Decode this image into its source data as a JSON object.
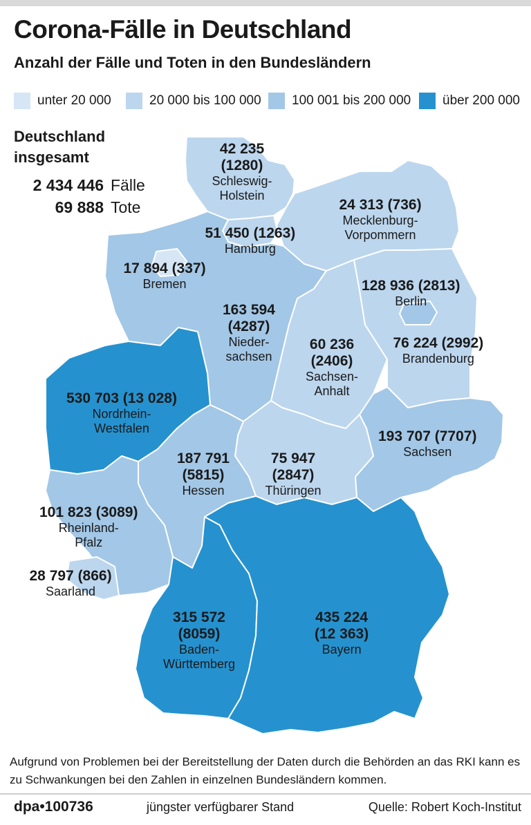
{
  "title": "Corona-Fälle in Deutschland",
  "subtitle": "Anzahl der Fälle und Toten in den Bundesländern",
  "legend": [
    {
      "label": "unter 20 000",
      "color": "#d6e6f5"
    },
    {
      "label": "20 000 bis 100 000",
      "color": "#bcd6ee"
    },
    {
      "label": "100 001 bis 200 000",
      "color": "#a3c7e6"
    },
    {
      "label": "über 200 000",
      "color": "#2592cf"
    }
  ],
  "total": {
    "title_line1": "Deutschland",
    "title_line2": "insgesamt",
    "cases_value": "2 434 446",
    "cases_label": "Fälle",
    "deaths_value": "69 888",
    "deaths_label": "Tote"
  },
  "states": [
    {
      "key": "sh",
      "num": [
        "42 235",
        "(1280)"
      ],
      "name": [
        "Schleswig-",
        "Holstein"
      ],
      "color": "#bcd6ee"
    },
    {
      "key": "mv",
      "num": [
        "24 313 (736)"
      ],
      "name": [
        "Mecklenburg-",
        "Vorpommern"
      ],
      "color": "#bcd6ee"
    },
    {
      "key": "hh",
      "num": [
        "51 450 (1263)"
      ],
      "name": [
        "Hamburg"
      ],
      "color": "#bcd6ee"
    },
    {
      "key": "hb",
      "num": [
        "17 894 (337)"
      ],
      "name": [
        "Bremen"
      ],
      "color": "#d6e6f5"
    },
    {
      "key": "be",
      "num": [
        "128 936 (2813)"
      ],
      "name": [
        "Berlin"
      ],
      "color": "#a3c7e6"
    },
    {
      "key": "ni",
      "num": [
        "163 594",
        "(4287)"
      ],
      "name": [
        "Nieder-",
        "sachsen"
      ],
      "color": "#a3c7e6"
    },
    {
      "key": "st",
      "num": [
        "60 236",
        "(2406)"
      ],
      "name": [
        "Sachsen-",
        "Anhalt"
      ],
      "color": "#bcd6ee"
    },
    {
      "key": "bb",
      "num": [
        "76 224 (2992)"
      ],
      "name": [
        "Brandenburg"
      ],
      "color": "#bcd6ee"
    },
    {
      "key": "nw",
      "num": [
        "530 703 (13 028)"
      ],
      "name": [
        "Nordrhein-",
        "Westfalen"
      ],
      "color": "#2592cf"
    },
    {
      "key": "sn",
      "num": [
        "193 707 (7707)"
      ],
      "name": [
        "Sachsen"
      ],
      "color": "#a3c7e6"
    },
    {
      "key": "th",
      "num": [
        "75 947",
        "(2847)"
      ],
      "name": [
        "Thüringen"
      ],
      "color": "#bcd6ee"
    },
    {
      "key": "he",
      "num": [
        "187 791",
        "(5815)"
      ],
      "name": [
        "Hessen"
      ],
      "color": "#a3c7e6"
    },
    {
      "key": "rp",
      "num": [
        "101 823 (3089)"
      ],
      "name": [
        "Rheinland-",
        "Pfalz"
      ],
      "color": "#a3c7e6"
    },
    {
      "key": "sl",
      "num": [
        "28 797 (866)"
      ],
      "name": [
        "Saarland"
      ],
      "color": "#bcd6ee"
    },
    {
      "key": "bw",
      "num": [
        "315 572",
        "(8059)"
      ],
      "name": [
        "Baden-",
        "Württemberg"
      ],
      "color": "#2592cf"
    },
    {
      "key": "by",
      "num": [
        "435 224",
        "(12 363)"
      ],
      "name": [
        "Bayern"
      ],
      "color": "#2592cf"
    }
  ],
  "note": "Aufgrund von Problemen bei der Bereitstellung der Daten durch die Behörden an das RKI kann es zu Schwankungen bei den Zahlen in einzelnen Bundesländern kommen.",
  "footer": {
    "agency": "dpa•100736",
    "stand": "jüngster verfügbarer Stand",
    "source": "Quelle: Robert Koch-Institut"
  }
}
